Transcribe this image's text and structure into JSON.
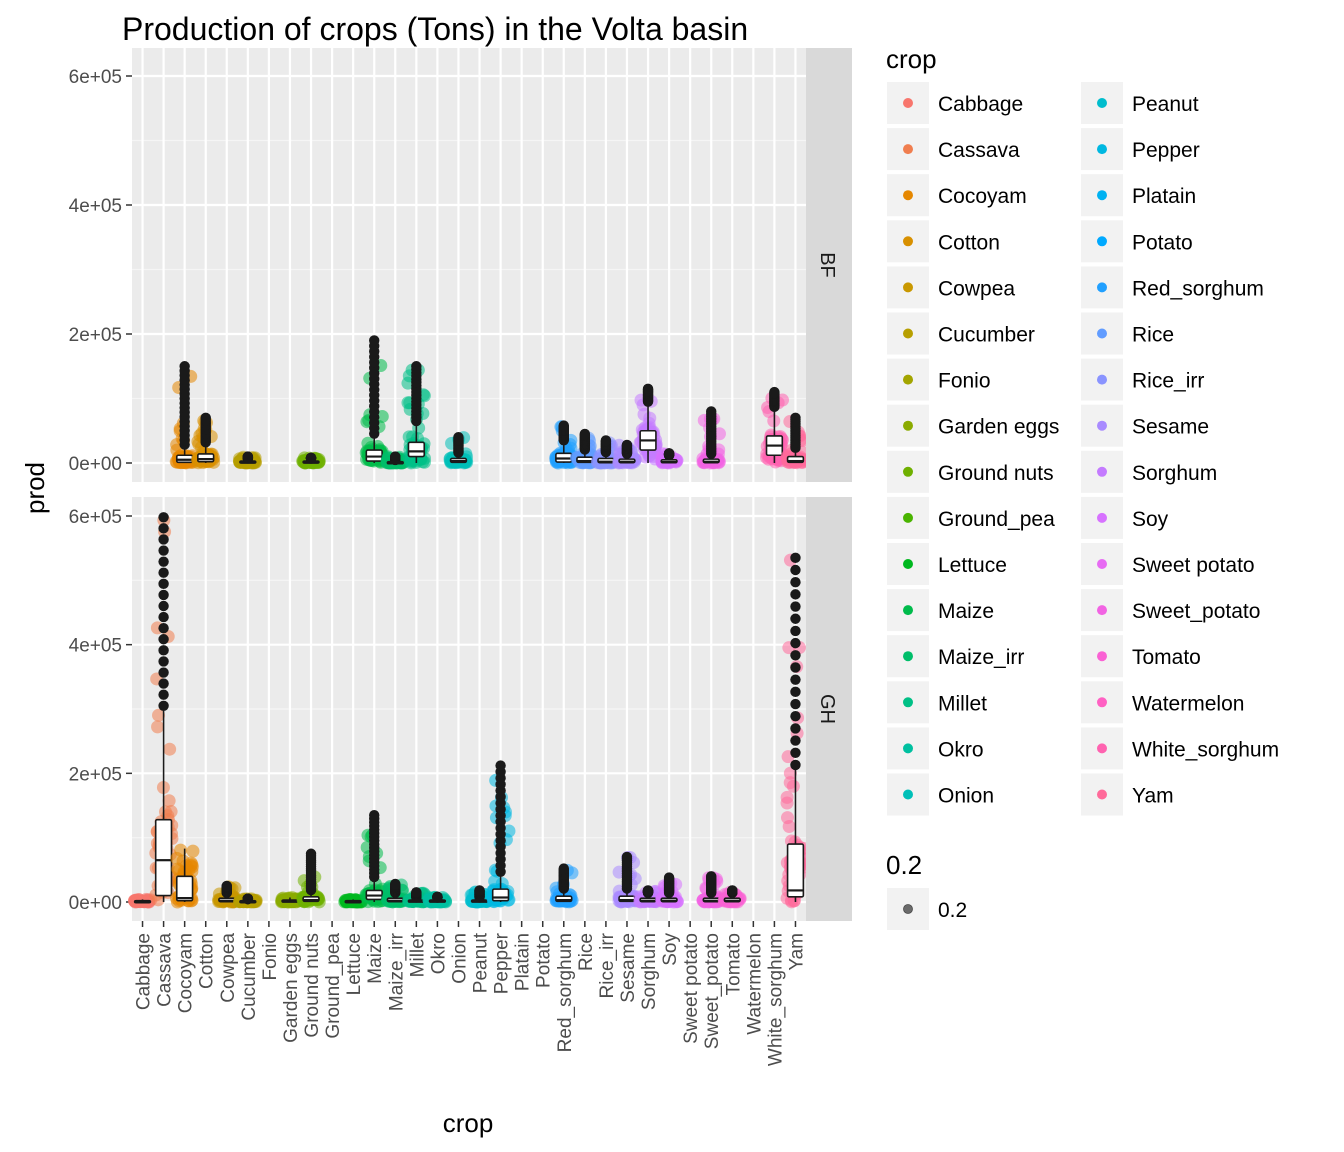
{
  "chart_data": {
    "type": "boxplot",
    "title": "Production of crops (Tons) in the Volta basin",
    "xlabel": "crop",
    "ylabel": "prod",
    "ylim": [
      0,
      600000
    ],
    "y_ticks": [
      0,
      200000,
      400000,
      600000
    ],
    "y_tick_labels": [
      "0e+00",
      "2e+05",
      "4e+05",
      "6e+05"
    ],
    "categories": [
      "Cabbage",
      "Cassava",
      "Cocoyam",
      "Cotton",
      "Cowpea",
      "Cucumber",
      "Fonio",
      "Garden eggs",
      "Ground nuts",
      "Ground_pea",
      "Lettuce",
      "Maize",
      "Maize_irr",
      "Millet",
      "Okro",
      "Onion",
      "Peanut",
      "Pepper",
      "Platain",
      "Potato",
      "Red_sorghum",
      "Rice",
      "Rice_irr",
      "Sesame",
      "Sorghum",
      "Soy",
      "Sweet potato",
      "Sweet_potato",
      "Tomato",
      "Watermelon",
      "White_sorghum",
      "Yam"
    ],
    "colors": [
      "#F8766D",
      "#F07E4F",
      "#E58700",
      "#D89000",
      "#C99800",
      "#B79F00",
      "#A3A500",
      "#8BAB00",
      "#6FB000",
      "#4AB400",
      "#00B81F",
      "#00BB4B",
      "#00BE6A",
      "#00C086",
      "#00C0A0",
      "#00C0B8",
      "#00BDCD",
      "#00B8E1",
      "#00B2F2",
      "#00A9FF",
      "#21A0FF",
      "#619CFF",
      "#8A94FF",
      "#A98BFF",
      "#C47BFF",
      "#D772FF",
      "#E76BF3",
      "#F264E3",
      "#FA62D4",
      "#FF61C3",
      "#FF63B0",
      "#FF6A9A"
    ],
    "legend": {
      "title": "crop",
      "size_title": "0.2",
      "size_label": "0.2",
      "position": "right"
    },
    "panels": [
      {
        "label": "BF",
        "boxes": [
          {
            "crop": "Cocoyam",
            "min": 0,
            "q1": 1000,
            "median": 5000,
            "q3": 12000,
            "max": 150000
          },
          {
            "crop": "Cotton",
            "min": 0,
            "q1": 2000,
            "median": 6000,
            "q3": 14000,
            "max": 70000
          },
          {
            "crop": "Cucumber",
            "min": 0,
            "q1": 300,
            "median": 1000,
            "q3": 3000,
            "max": 10000
          },
          {
            "crop": "Ground nuts",
            "min": 0,
            "q1": 300,
            "median": 1000,
            "q3": 3000,
            "max": 8000
          },
          {
            "crop": "Maize",
            "min": 0,
            "q1": 3000,
            "median": 10000,
            "q3": 20000,
            "max": 190000
          },
          {
            "crop": "Maize_irr",
            "min": 0,
            "q1": 200,
            "median": 600,
            "q3": 2000,
            "max": 10000
          },
          {
            "crop": "Millet",
            "min": 0,
            "q1": 10000,
            "median": 18000,
            "q3": 32000,
            "max": 150000
          },
          {
            "crop": "Onion",
            "min": 0,
            "q1": 1000,
            "median": 3000,
            "q3": 7000,
            "max": 40000
          },
          {
            "crop": "Red_sorghum",
            "min": 0,
            "q1": 1500,
            "median": 7000,
            "q3": 15000,
            "max": 58000
          },
          {
            "crop": "Rice",
            "min": 0,
            "q1": 1000,
            "median": 3000,
            "q3": 9000,
            "max": 45000
          },
          {
            "crop": "Rice_irr",
            "min": 0,
            "q1": 500,
            "median": 2000,
            "q3": 7000,
            "max": 35000
          },
          {
            "crop": "Sesame",
            "min": 0,
            "q1": 500,
            "median": 2000,
            "q3": 6000,
            "max": 28000
          },
          {
            "crop": "Sorghum",
            "min": 0,
            "q1": 20000,
            "median": 35000,
            "q3": 50000,
            "max": 115000
          },
          {
            "crop": "Soy",
            "min": 0,
            "q1": 500,
            "median": 1500,
            "q3": 5000,
            "max": 15000
          },
          {
            "crop": "Sweet_potato",
            "min": 0,
            "q1": 500,
            "median": 2000,
            "q3": 6000,
            "max": 80000
          },
          {
            "crop": "White_sorghum",
            "min": 0,
            "q1": 12000,
            "median": 27000,
            "q3": 42000,
            "max": 110000
          },
          {
            "crop": "Yam",
            "min": 0,
            "q1": 1000,
            "median": 3000,
            "q3": 10000,
            "max": 70000
          }
        ]
      },
      {
        "label": "GH",
        "boxes": [
          {
            "crop": "Cabbage",
            "min": 0,
            "q1": 300,
            "median": 1000,
            "q3": 2000,
            "max": 4000
          },
          {
            "crop": "Cassava",
            "min": 0,
            "q1": 10000,
            "median": 65000,
            "q3": 128000,
            "max": 598000
          },
          {
            "crop": "Cocoyam",
            "min": 0,
            "q1": 2000,
            "median": 6000,
            "q3": 40000,
            "max": 83000
          },
          {
            "crop": "Cowpea",
            "min": 0,
            "q1": 500,
            "median": 2000,
            "q3": 6000,
            "max": 25000
          },
          {
            "crop": "Cucumber",
            "min": 0,
            "q1": 200,
            "median": 600,
            "q3": 2000,
            "max": 5000
          },
          {
            "crop": "Garden eggs",
            "min": 0,
            "q1": 300,
            "median": 1000,
            "q3": 3000,
            "max": 7000
          },
          {
            "crop": "Ground nuts",
            "min": 0,
            "q1": 1000,
            "median": 3000,
            "q3": 8000,
            "max": 75000
          },
          {
            "crop": "Lettuce",
            "min": 0,
            "q1": 200,
            "median": 800,
            "q3": 2000,
            "max": 4000
          },
          {
            "crop": "Maize",
            "min": 0,
            "q1": 4000,
            "median": 10000,
            "q3": 18000,
            "max": 135000
          },
          {
            "crop": "Maize_irr",
            "min": 0,
            "q1": 500,
            "median": 2000,
            "q3": 6000,
            "max": 28000
          },
          {
            "crop": "Millet",
            "min": 0,
            "q1": 300,
            "median": 1000,
            "q3": 3000,
            "max": 15000
          },
          {
            "crop": "Okro",
            "min": 0,
            "q1": 300,
            "median": 1000,
            "q3": 3000,
            "max": 8000
          },
          {
            "crop": "Peanut",
            "min": 0,
            "q1": 300,
            "median": 1000,
            "q3": 3000,
            "max": 18000
          },
          {
            "crop": "Pepper",
            "min": 0,
            "q1": 2000,
            "median": 7000,
            "q3": 20000,
            "max": 212000
          },
          {
            "crop": "Red_sorghum",
            "min": 0,
            "q1": 1000,
            "median": 3000,
            "q3": 9000,
            "max": 52000
          },
          {
            "crop": "Sesame",
            "min": 0,
            "q1": 1000,
            "median": 3000,
            "q3": 9000,
            "max": 70000
          },
          {
            "crop": "Sorghum",
            "min": 0,
            "q1": 500,
            "median": 2000,
            "q3": 6000,
            "max": 18000
          },
          {
            "crop": "Soy",
            "min": 0,
            "q1": 500,
            "median": 2000,
            "q3": 6000,
            "max": 38000
          },
          {
            "crop": "Sweet_potato",
            "min": 0,
            "q1": 500,
            "median": 2000,
            "q3": 6000,
            "max": 40000
          },
          {
            "crop": "Tomato",
            "min": 0,
            "q1": 500,
            "median": 2000,
            "q3": 6000,
            "max": 18000
          },
          {
            "crop": "Yam",
            "min": 0,
            "q1": 8000,
            "median": 18000,
            "q3": 90000,
            "max": 535000
          }
        ]
      }
    ]
  }
}
